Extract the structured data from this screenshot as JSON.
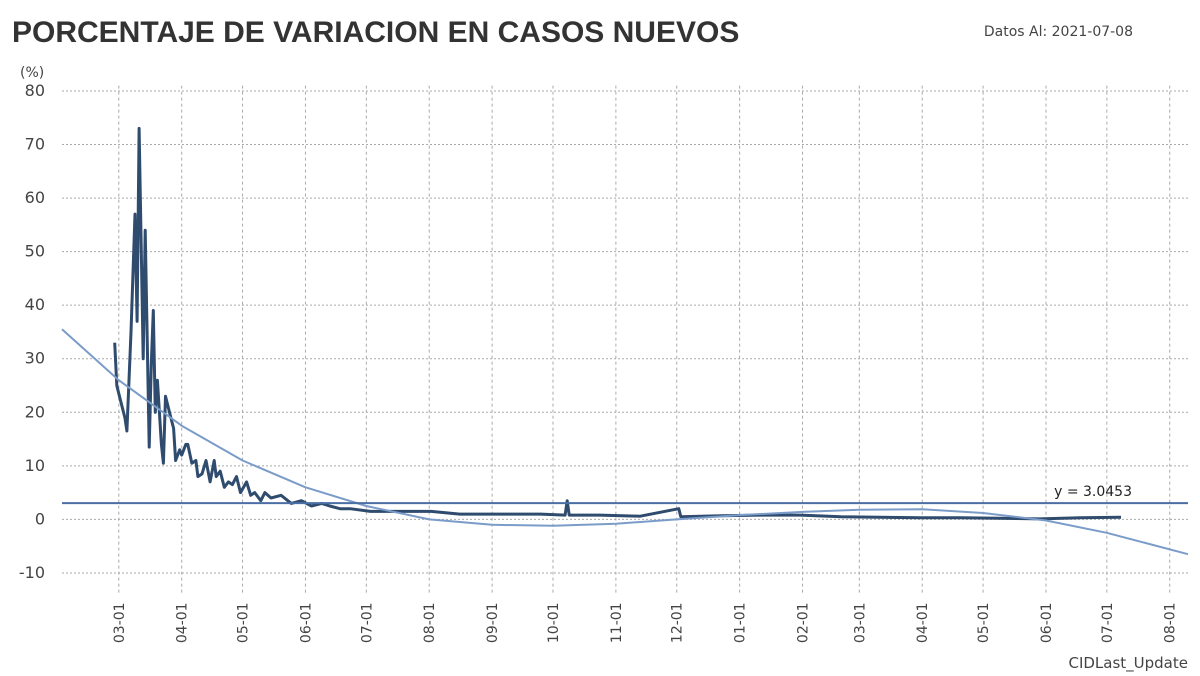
{
  "chart_data": {
    "type": "line",
    "title": "PORCENTAJE DE VARIACION EN CASOS NUEVOS",
    "subtitle": "Datos Al: 2021-07-08",
    "y_label": "(%)",
    "x_label": "CIDLast_Update",
    "xlim": [
      -28,
      527
    ],
    "ylim": [
      -14,
      81
    ],
    "yticks": [
      -10,
      0,
      10,
      20,
      30,
      40,
      50,
      60,
      70,
      80
    ],
    "xticks": [
      {
        "value": 0,
        "label": "03-01"
      },
      {
        "value": 31,
        "label": "04-01"
      },
      {
        "value": 61,
        "label": "05-01"
      },
      {
        "value": 92,
        "label": "06-01"
      },
      {
        "value": 122,
        "label": "07-01"
      },
      {
        "value": 153,
        "label": "08-01"
      },
      {
        "value": 184,
        "label": "09-01"
      },
      {
        "value": 214,
        "label": "10-01"
      },
      {
        "value": 245,
        "label": "11-01"
      },
      {
        "value": 275,
        "label": "12-01"
      },
      {
        "value": 306,
        "label": "01-01"
      },
      {
        "value": 337,
        "label": "02-01"
      },
      {
        "value": 365,
        "label": "03-01"
      },
      {
        "value": 396,
        "label": "04-01"
      },
      {
        "value": 426,
        "label": "05-01"
      },
      {
        "value": 457,
        "label": "06-01"
      },
      {
        "value": 487,
        "label": "07-01"
      },
      {
        "value": 518,
        "label": "08-01"
      }
    ],
    "grid": true,
    "reference_line": {
      "value": 3.0453,
      "label": "y = 3.0453",
      "color": "#4a6fa5"
    },
    "series": [
      {
        "color": "#2f4b6e",
        "width": 3,
        "x": [
          -2,
          -1,
          1,
          3,
          4,
          6,
          8,
          9,
          10,
          12,
          13,
          15,
          16,
          17,
          18,
          19,
          21,
          22,
          23,
          25,
          27,
          28,
          30,
          31,
          33,
          34,
          36,
          38,
          39,
          41,
          43,
          45,
          47,
          48,
          50,
          52,
          54,
          56,
          58,
          60,
          63,
          65,
          67,
          70,
          72,
          75,
          80,
          85,
          90,
          95,
          100,
          104,
          109,
          114,
          124,
          139,
          154,
          168,
          188,
          208,
          220,
          221,
          222,
          237,
          257,
          276,
          277,
          297,
          316,
          336,
          356,
          375,
          395,
          415,
          434,
          454,
          474,
          494
        ],
        "values": [
          33,
          25,
          22,
          19,
          16.5,
          35,
          57,
          37,
          73,
          30,
          54,
          13.5,
          29,
          39,
          20,
          26,
          14,
          10.5,
          23,
          20,
          17,
          11,
          13,
          12,
          14,
          14,
          10.5,
          11,
          8,
          8.5,
          11,
          7,
          11,
          8,
          9,
          6,
          7,
          6.5,
          8,
          5,
          7,
          4.5,
          5,
          3.5,
          5,
          4,
          4.5,
          3,
          3.5,
          2.5,
          3,
          2.5,
          2,
          2,
          1.5,
          1.5,
          1.5,
          1,
          1,
          1,
          0.8,
          3.5,
          0.8,
          0.8,
          0.6,
          2,
          0.5,
          0.7,
          0.8,
          0.8,
          0.5,
          0.4,
          0.3,
          0.3,
          0.2,
          0.1,
          0.3,
          0.4
        ]
      },
      {
        "color": "#7b9cc9",
        "width": 2,
        "x": [
          -28,
          0,
          31,
          61,
          92,
          122,
          153,
          184,
          214,
          245,
          275,
          306,
          337,
          365,
          396,
          426,
          457,
          487,
          527
        ],
        "values": [
          35.5,
          26,
          17.5,
          11,
          6,
          2.5,
          0,
          -1,
          -1.2,
          -0.8,
          0,
          0.8,
          1.4,
          1.8,
          1.9,
          1.2,
          -0.2,
          -2.5,
          -6.5
        ]
      }
    ]
  }
}
